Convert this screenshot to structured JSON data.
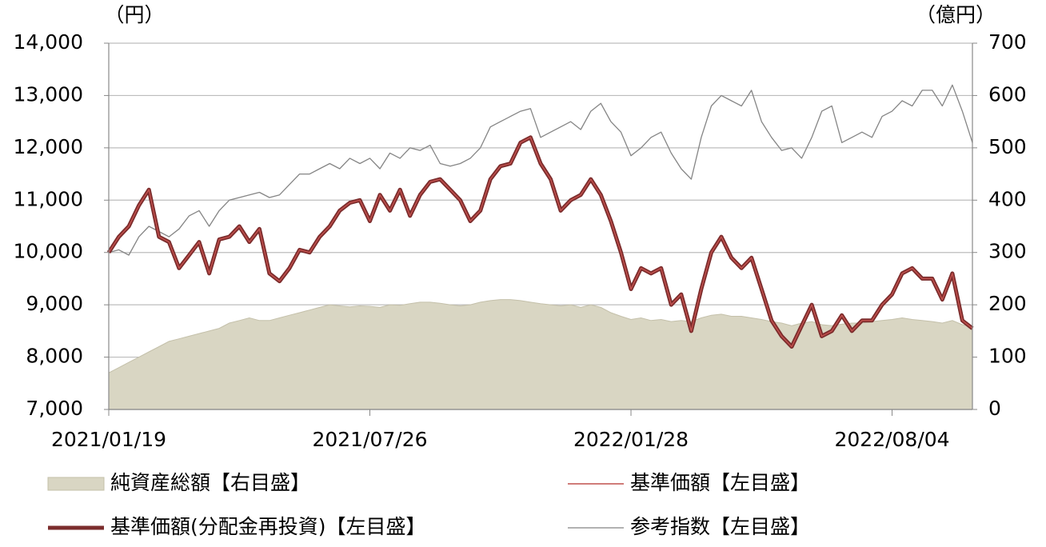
{
  "chart_data": {
    "type": "line",
    "y_label": "（円）",
    "y2_label": "（億円）",
    "categories": [
      "2021/01/19",
      null,
      null,
      null,
      null,
      null,
      null,
      null,
      null,
      null,
      null,
      null,
      null,
      null,
      null,
      null,
      null,
      null,
      null,
      null,
      null,
      null,
      null,
      null,
      null,
      null,
      "2021/07/26",
      null,
      null,
      null,
      null,
      null,
      null,
      null,
      null,
      null,
      null,
      null,
      null,
      null,
      null,
      null,
      null,
      null,
      null,
      null,
      null,
      null,
      null,
      null,
      null,
      null,
      "2022/01/28",
      null,
      null,
      null,
      null,
      null,
      null,
      null,
      null,
      null,
      null,
      null,
      null,
      null,
      null,
      null,
      null,
      null,
      null,
      null,
      null,
      null,
      null,
      null,
      null,
      null,
      "2022/08/04",
      null,
      null,
      null,
      null,
      null,
      null,
      null,
      null
    ],
    "ylim": [
      7000,
      14000
    ],
    "yticks": [
      {
        "value": 7000,
        "label": "7,000"
      },
      {
        "value": 8000,
        "label": "8,000"
      },
      {
        "value": 9000,
        "label": "9,000"
      },
      {
        "value": 10000,
        "label": "10,000"
      },
      {
        "value": 11000,
        "label": "11,000"
      },
      {
        "value": 12000,
        "label": "12,000"
      },
      {
        "value": 13000,
        "label": "13,000"
      },
      {
        "value": 14000,
        "label": "14,000"
      }
    ],
    "y2lim": [
      0,
      700
    ],
    "y2ticks": [
      0,
      100,
      200,
      300,
      400,
      500,
      600,
      700
    ],
    "grid": true,
    "series": [
      {
        "name": "純資産総額【右目盛】",
        "kind": "area",
        "axis": "y2",
        "color": "#d9d6c3",
        "line_width": 1,
        "values": [
          70,
          80,
          90,
          100,
          110,
          120,
          130,
          135,
          140,
          145,
          150,
          155,
          165,
          170,
          175,
          170,
          170,
          175,
          180,
          185,
          190,
          195,
          200,
          198,
          196,
          198,
          197,
          195,
          200,
          199,
          202,
          205,
          205,
          203,
          200,
          198,
          200,
          205,
          208,
          210,
          210,
          208,
          205,
          202,
          200,
          198,
          200,
          195,
          200,
          195,
          185,
          178,
          172,
          175,
          170,
          172,
          168,
          170,
          168,
          175,
          180,
          182,
          178,
          178,
          175,
          172,
          168,
          165,
          160,
          165,
          168,
          162,
          160,
          163,
          165,
          165,
          168,
          170,
          172,
          175,
          172,
          170,
          168,
          165,
          170,
          162,
          158
        ]
      },
      {
        "name": "基準価額【左目盛】",
        "kind": "line",
        "color": "#c0504d",
        "line_width": 1.5,
        "values": [
          10000,
          10300,
          10500,
          10900,
          11200,
          10300,
          10200,
          9700,
          9950,
          10200,
          9600,
          10250,
          10300,
          10500,
          10200,
          10450,
          9600,
          9450,
          9700,
          10050,
          10000,
          10300,
          10500,
          10800,
          10950,
          11000,
          10600,
          11100,
          10800,
          11200,
          10700,
          11100,
          11350,
          11400,
          11200,
          11000,
          10600,
          10800,
          11400,
          11650,
          11700,
          12100,
          12200,
          11700,
          11400,
          10800,
          11000,
          11100,
          11400,
          11100,
          10600,
          10000,
          9300,
          9700,
          9600,
          9700,
          9000,
          9200,
          8500,
          9300,
          10000,
          10300,
          9900,
          9700,
          9900,
          9300,
          8700,
          8400,
          8200,
          8600,
          9000,
          8400,
          8500,
          8800,
          8500,
          8700,
          8700,
          9000,
          9200,
          9600,
          9700,
          9500,
          9500,
          9100,
          9600,
          8700,
          8550
        ]
      },
      {
        "name": "基準価額(分配金再投資)【左目盛】",
        "kind": "line",
        "color": "#7b2c2c",
        "line_width": 5,
        "values": [
          10000,
          10300,
          10500,
          10900,
          11200,
          10300,
          10200,
          9700,
          9950,
          10200,
          9600,
          10250,
          10300,
          10500,
          10200,
          10450,
          9600,
          9450,
          9700,
          10050,
          10000,
          10300,
          10500,
          10800,
          10950,
          11000,
          10600,
          11100,
          10800,
          11200,
          10700,
          11100,
          11350,
          11400,
          11200,
          11000,
          10600,
          10800,
          11400,
          11650,
          11700,
          12100,
          12200,
          11700,
          11400,
          10800,
          11000,
          11100,
          11400,
          11100,
          10600,
          10000,
          9300,
          9700,
          9600,
          9700,
          9000,
          9200,
          8500,
          9300,
          10000,
          10300,
          9900,
          9700,
          9900,
          9300,
          8700,
          8400,
          8200,
          8600,
          9000,
          8400,
          8500,
          8800,
          8500,
          8700,
          8700,
          9000,
          9200,
          9600,
          9700,
          9500,
          9500,
          9100,
          9600,
          8700,
          8550
        ]
      },
      {
        "name": "参考指数【左目盛】",
        "kind": "line",
        "color": "#858585",
        "line_width": 1.3,
        "values": [
          10000,
          10050,
          9950,
          10300,
          10500,
          10400,
          10300,
          10450,
          10700,
          10800,
          10500,
          10800,
          11000,
          11050,
          11100,
          11150,
          11050,
          11100,
          11300,
          11500,
          11500,
          11600,
          11700,
          11600,
          11800,
          11700,
          11800,
          11600,
          11900,
          11800,
          12000,
          11950,
          12050,
          11700,
          11650,
          11700,
          11800,
          12000,
          12400,
          12500,
          12600,
          12700,
          12750,
          12200,
          12300,
          12400,
          12500,
          12350,
          12700,
          12850,
          12500,
          12300,
          11850,
          12000,
          12200,
          12300,
          11900,
          11600,
          11400,
          12200,
          12800,
          13000,
          12900,
          12800,
          13100,
          12500,
          12200,
          11950,
          12000,
          11800,
          12200,
          12700,
          12800,
          12100,
          12200,
          12300,
          12200,
          12600,
          12700,
          12900,
          12800,
          13100,
          13100,
          12800,
          13200,
          12700,
          12100
        ]
      }
    ]
  }
}
